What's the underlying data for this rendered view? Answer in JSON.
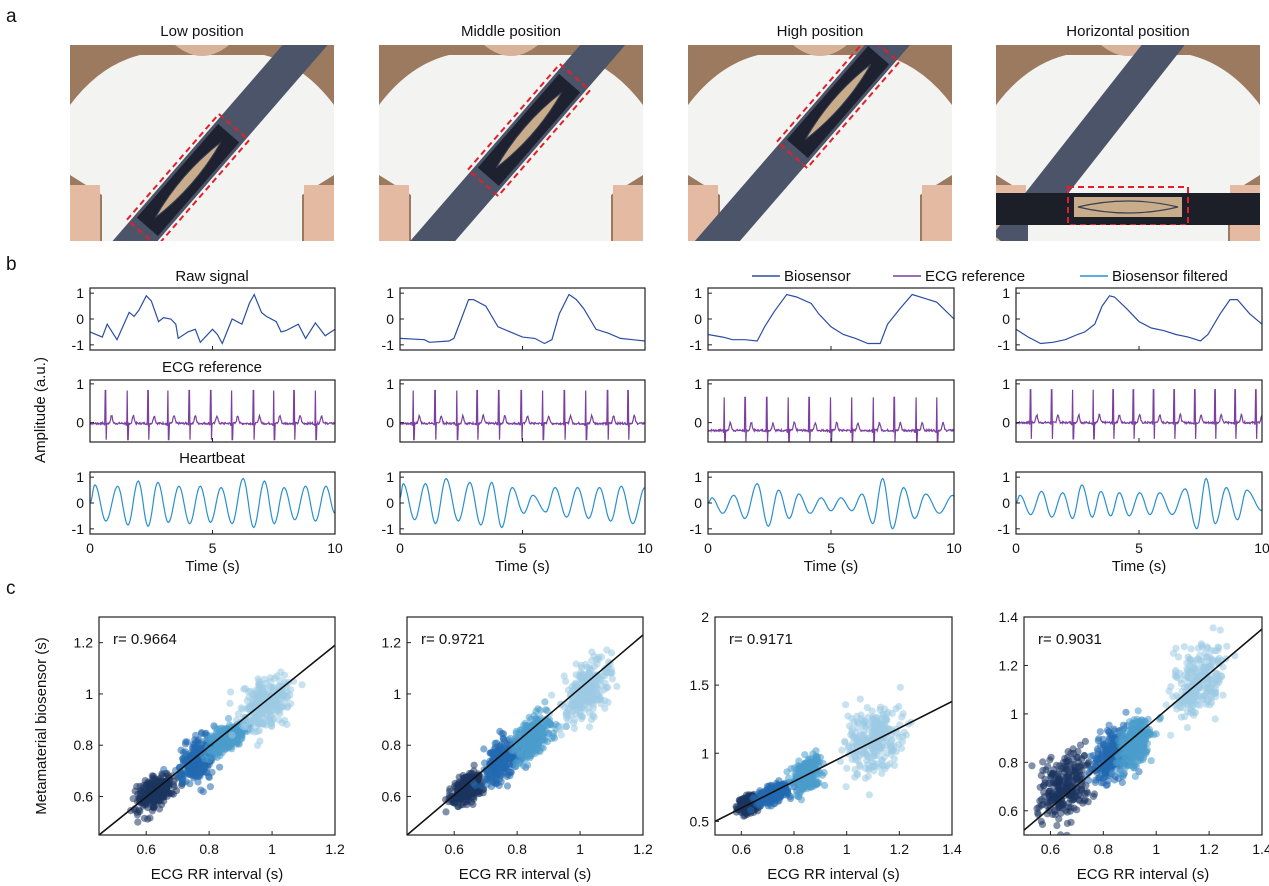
{
  "panel_a": {
    "letter": "a",
    "photos": [
      {
        "title": "Low position"
      },
      {
        "title": "Middle position"
      },
      {
        "title": "High position"
      },
      {
        "title": "Horizontal position"
      }
    ]
  },
  "panel_b": {
    "letter": "b",
    "ylabel": "Amplitude (a.u.)",
    "row_titles": [
      "Raw signal",
      "ECG reference",
      "Heartbeat"
    ],
    "legend": [
      {
        "label": "Biosensor",
        "color": "#2b4ea3"
      },
      {
        "label": "ECG reference",
        "color": "#7a3fa0"
      },
      {
        "label": "Biosensor filtered",
        "color": "#2a8fd0"
      }
    ]
  },
  "panel_c": {
    "letter": "c",
    "ylabel": "Metamaterial biosensor (s)",
    "cluster_colors": [
      "#1c3461",
      "#2369b0",
      "#4a9ccc",
      "#9dcbe3"
    ]
  },
  "chart_data": [
    {
      "type": "line",
      "panel": "b",
      "xlabel": "Time (s)",
      "xlim": [
        0,
        10
      ],
      "xticks": [
        0,
        5,
        10
      ],
      "rows": [
        {
          "name": "Biosensor",
          "ylim": [
            -1.2,
            1.2
          ],
          "yticks": [
            -1,
            0,
            1
          ]
        },
        {
          "name": "ECG reference",
          "ylim": [
            -0.5,
            1.1
          ],
          "yticks": [
            0,
            1
          ]
        },
        {
          "name": "Biosensor filtered",
          "ylim": [
            -1.2,
            1.2
          ],
          "yticks": [
            -1,
            0,
            1
          ]
        }
      ],
      "columns": [
        {
          "raw": {
            "x": [
              0,
              0.5,
              0.7,
              1.1,
              1.6,
              1.8,
              2.0,
              2.3,
              2.5,
              2.8,
              3.0,
              3.3,
              3.5,
              3.6,
              4.0,
              4.3,
              4.5,
              5.0,
              5.2,
              5.4,
              5.8,
              6.2,
              6.5,
              6.7,
              7.0,
              7.2,
              7.6,
              7.8,
              8.0,
              8.5,
              8.8,
              9.2,
              9.6,
              10
            ],
            "y": [
              -0.5,
              -0.7,
              -0.2,
              -0.8,
              0.26,
              0.1,
              0.35,
              0.9,
              0.7,
              -0.1,
              0.05,
              0.0,
              -0.2,
              -0.75,
              -0.5,
              -0.4,
              -0.9,
              -0.4,
              -0.6,
              -0.95,
              0.0,
              -0.2,
              0.6,
              0.95,
              0.25,
              0.1,
              -0.1,
              -0.5,
              -0.45,
              -0.2,
              -0.75,
              -0.15,
              -0.65,
              -0.4
            ]
          },
          "ecg": {
            "baseline": -0.02,
            "r_peaks": [
              0.63,
              1.52,
              2.37,
              3.18,
              4.05,
              4.93,
              5.78,
              6.67,
              7.5,
              8.33,
              9.2
            ]
          },
          "filtered_extrema": [
            [
              0,
              0
            ],
            [
              0.2,
              0.7
            ],
            [
              0.65,
              -0.7
            ],
            [
              1.13,
              0.65
            ],
            [
              1.55,
              -0.85
            ],
            [
              1.97,
              0.85
            ],
            [
              2.37,
              -0.9
            ],
            [
              2.77,
              0.8
            ],
            [
              3.2,
              -0.75
            ],
            [
              3.63,
              0.65
            ],
            [
              4.07,
              -0.8
            ],
            [
              4.5,
              0.65
            ],
            [
              4.92,
              -0.75
            ],
            [
              5.35,
              0.6
            ],
            [
              5.8,
              -0.8
            ],
            [
              6.25,
              0.95
            ],
            [
              6.68,
              -0.95
            ],
            [
              7.12,
              0.85
            ],
            [
              7.52,
              -0.8
            ],
            [
              7.92,
              0.6
            ],
            [
              8.36,
              -0.65
            ],
            [
              8.8,
              0.65
            ],
            [
              9.2,
              -0.7
            ],
            [
              9.63,
              0.65
            ],
            [
              10,
              -0.4
            ]
          ]
        },
        {
          "raw": {
            "x": [
              0,
              1,
              1.2,
              2,
              2.2,
              2.5,
              2.8,
              3.0,
              3.5,
              4.0,
              4.5,
              5.0,
              5.5,
              5.9,
              6.2,
              6.5,
              6.9,
              7.2,
              7.5,
              8.0,
              8.5,
              9.0,
              9.5,
              10
            ],
            "y": [
              -0.75,
              -0.8,
              -0.9,
              -0.85,
              -0.75,
              0.0,
              0.75,
              0.75,
              0.5,
              -0.3,
              -0.5,
              -0.7,
              -0.75,
              -0.95,
              -0.8,
              0.2,
              0.95,
              0.75,
              0.4,
              -0.4,
              -0.55,
              -0.75,
              -0.8,
              -0.85
            ]
          },
          "ecg": {
            "baseline": -0.02,
            "r_peaks": [
              0.54,
              1.43,
              2.32,
              3.15,
              4.03,
              4.95,
              5.82,
              6.71,
              7.58,
              8.47,
              9.31
            ]
          },
          "filtered_extrema": [
            [
              0,
              0.2
            ],
            [
              0.13,
              0.75
            ],
            [
              0.6,
              -0.65
            ],
            [
              1.04,
              0.75
            ],
            [
              1.45,
              -0.8
            ],
            [
              1.88,
              0.95
            ],
            [
              2.38,
              -0.7
            ],
            [
              2.85,
              0.8
            ],
            [
              3.3,
              -0.85
            ],
            [
              3.74,
              0.8
            ],
            [
              4.15,
              -0.95
            ],
            [
              4.58,
              0.6
            ],
            [
              5.05,
              -0.4
            ],
            [
              5.42,
              0.3
            ],
            [
              5.95,
              -0.35
            ],
            [
              6.33,
              0.6
            ],
            [
              6.8,
              -0.55
            ],
            [
              7.25,
              0.6
            ],
            [
              7.7,
              -0.6
            ],
            [
              8.14,
              0.6
            ],
            [
              8.6,
              -0.7
            ],
            [
              9.03,
              0.65
            ],
            [
              9.5,
              -0.8
            ],
            [
              10,
              0.6
            ]
          ]
        },
        {
          "raw": {
            "x": [
              0,
              0.6,
              1,
              1.5,
              2,
              2.3,
              2.7,
              3.2,
              3.6,
              4.2,
              4.5,
              5,
              5.5,
              6,
              6.5,
              7,
              7.3,
              7.8,
              8.3,
              8.8,
              9.3,
              10
            ],
            "y": [
              -0.6,
              -0.7,
              -0.8,
              -0.8,
              -0.85,
              -0.3,
              0.3,
              0.95,
              0.85,
              0.6,
              0.2,
              -0.3,
              -0.6,
              -0.75,
              -0.95,
              -0.95,
              -0.2,
              0.4,
              0.95,
              0.8,
              0.65,
              0.0
            ]
          },
          "ecg": {
            "baseline": -0.2,
            "r_peaks": [
              0.66,
              1.51,
              2.39,
              3.26,
              4.11,
              4.98,
              5.84,
              6.72,
              7.57,
              8.46,
              9.3
            ]
          },
          "filtered_extrema": [
            [
              0,
              0
            ],
            [
              0.16,
              0.2
            ],
            [
              0.6,
              -0.4
            ],
            [
              1.05,
              0.3
            ],
            [
              1.5,
              -0.6
            ],
            [
              2.0,
              0.75
            ],
            [
              2.45,
              -0.9
            ],
            [
              2.87,
              0.5
            ],
            [
              3.3,
              -0.6
            ],
            [
              3.69,
              0.35
            ],
            [
              4.15,
              -0.4
            ],
            [
              4.6,
              0.2
            ],
            [
              5.0,
              -0.3
            ],
            [
              5.4,
              0.2
            ],
            [
              5.85,
              -0.3
            ],
            [
              6.26,
              0.35
            ],
            [
              6.7,
              -0.8
            ],
            [
              7.1,
              0.95
            ],
            [
              7.5,
              -1.0
            ],
            [
              7.95,
              0.6
            ],
            [
              8.4,
              -0.6
            ],
            [
              8.85,
              0.35
            ],
            [
              9.4,
              -0.4
            ],
            [
              9.95,
              0.3
            ],
            [
              10,
              0.25
            ]
          ]
        },
        {
          "raw": {
            "x": [
              0,
              0.5,
              1,
              1.5,
              2,
              2.5,
              2.8,
              3.2,
              3.5,
              3.8,
              4.0,
              4.5,
              5,
              5.5,
              6,
              6.5,
              7,
              7.5,
              7.8,
              8.3,
              8.7,
              9.0,
              9.5,
              10
            ],
            "y": [
              -0.4,
              -0.7,
              -0.95,
              -0.9,
              -0.8,
              -0.6,
              -0.5,
              -0.2,
              0.5,
              0.9,
              0.85,
              0.4,
              -0.1,
              -0.35,
              -0.45,
              -0.6,
              -0.7,
              -0.85,
              -0.6,
              0.2,
              0.75,
              0.75,
              0.2,
              -0.2
            ]
          },
          "ecg": {
            "baseline": 0.0,
            "r_peaks": [
              0.59,
              1.45,
              2.3,
              3.14,
              3.95,
              4.77,
              5.59,
              6.43,
              7.27,
              8.09,
              8.91,
              9.75
            ]
          },
          "filtered_extrema": [
            [
              0,
              0
            ],
            [
              0.16,
              0.3
            ],
            [
              0.6,
              -0.45
            ],
            [
              1.04,
              0.45
            ],
            [
              1.45,
              -0.55
            ],
            [
              1.9,
              0.4
            ],
            [
              2.3,
              -0.6
            ],
            [
              2.68,
              0.7
            ],
            [
              3.1,
              -0.55
            ],
            [
              3.45,
              0.45
            ],
            [
              3.85,
              -0.5
            ],
            [
              4.2,
              0.4
            ],
            [
              4.6,
              -0.5
            ],
            [
              5.03,
              0.4
            ],
            [
              5.45,
              -0.45
            ],
            [
              5.84,
              0.4
            ],
            [
              6.35,
              -0.45
            ],
            [
              6.88,
              0.55
            ],
            [
              7.35,
              -1.0
            ],
            [
              7.73,
              0.95
            ],
            [
              8.1,
              -0.8
            ],
            [
              8.55,
              0.6
            ],
            [
              9.0,
              -0.65
            ],
            [
              9.38,
              0.5
            ],
            [
              10,
              -0.3
            ]
          ]
        }
      ]
    },
    {
      "type": "scatter",
      "panel": "c",
      "xlabel": "ECG RR interval (s)",
      "ylabel": "Metamaterial biosensor (s)",
      "plots": [
        {
          "r_label": "r= 0.9664",
          "xlim": [
            0.45,
            1.2
          ],
          "ylim": [
            0.45,
            1.3
          ],
          "xticks": [
            0.6,
            0.8,
            1,
            1.2
          ],
          "yticks": [
            0.6,
            0.8,
            1,
            1.2
          ],
          "fit_line": [
            [
              0.45,
              0.45
            ],
            [
              1.2,
              1.19
            ]
          ],
          "clusters": [
            {
              "x": 0.63,
              "y": 0.62,
              "sx": 0.03,
              "sy": 0.03
            },
            {
              "x": 0.76,
              "y": 0.74,
              "sx": 0.03,
              "sy": 0.04
            },
            {
              "x": 0.86,
              "y": 0.83,
              "sx": 0.03,
              "sy": 0.025
            },
            {
              "x": 0.98,
              "y": 0.96,
              "sx": 0.04,
              "sy": 0.05
            }
          ]
        },
        {
          "r_label": "r= 0.9721",
          "xlim": [
            0.45,
            1.2
          ],
          "ylim": [
            0.45,
            1.3
          ],
          "xticks": [
            0.6,
            0.8,
            1,
            1.2
          ],
          "yticks": [
            0.6,
            0.8,
            1,
            1.2
          ],
          "fit_line": [
            [
              0.45,
              0.45
            ],
            [
              1.2,
              1.23
            ]
          ],
          "clusters": [
            {
              "x": 0.64,
              "y": 0.63,
              "sx": 0.025,
              "sy": 0.025
            },
            {
              "x": 0.75,
              "y": 0.74,
              "sx": 0.03,
              "sy": 0.035
            },
            {
              "x": 0.85,
              "y": 0.83,
              "sx": 0.03,
              "sy": 0.035
            },
            {
              "x": 1.02,
              "y": 1.01,
              "sx": 0.04,
              "sy": 0.05
            }
          ]
        },
        {
          "r_label": "r= 0.9171",
          "xlim": [
            0.5,
            1.4
          ],
          "ylim": [
            0.4,
            2
          ],
          "xticks": [
            0.6,
            0.8,
            1,
            1.2,
            1.4
          ],
          "yticks": [
            0.5,
            1,
            1.5,
            2
          ],
          "fit_line": [
            [
              0.5,
              0.5
            ],
            [
              1.4,
              1.38
            ]
          ],
          "clusters": [
            {
              "x": 0.63,
              "y": 0.63,
              "sx": 0.02,
              "sy": 0.03
            },
            {
              "x": 0.72,
              "y": 0.7,
              "sx": 0.03,
              "sy": 0.03
            },
            {
              "x": 0.85,
              "y": 0.84,
              "sx": 0.025,
              "sy": 0.06
            },
            {
              "x": 1.1,
              "y": 1.1,
              "sx": 0.05,
              "sy": 0.12
            }
          ]
        },
        {
          "r_label": "r= 0.9031",
          "xlim": [
            0.5,
            1.4
          ],
          "ylim": [
            0.5,
            1.4
          ],
          "xticks": [
            0.6,
            0.8,
            1,
            1.2,
            1.4
          ],
          "yticks": [
            0.6,
            0.8,
            1,
            1.2,
            1.4
          ],
          "fit_line": [
            [
              0.5,
              0.52
            ],
            [
              1.4,
              1.35
            ]
          ],
          "clusters": [
            {
              "x": 0.65,
              "y": 0.7,
              "sx": 0.05,
              "sy": 0.07
            },
            {
              "x": 0.83,
              "y": 0.82,
              "sx": 0.035,
              "sy": 0.05
            },
            {
              "x": 0.92,
              "y": 0.88,
              "sx": 0.03,
              "sy": 0.05
            },
            {
              "x": 1.16,
              "y": 1.12,
              "sx": 0.05,
              "sy": 0.07
            }
          ]
        }
      ]
    }
  ]
}
